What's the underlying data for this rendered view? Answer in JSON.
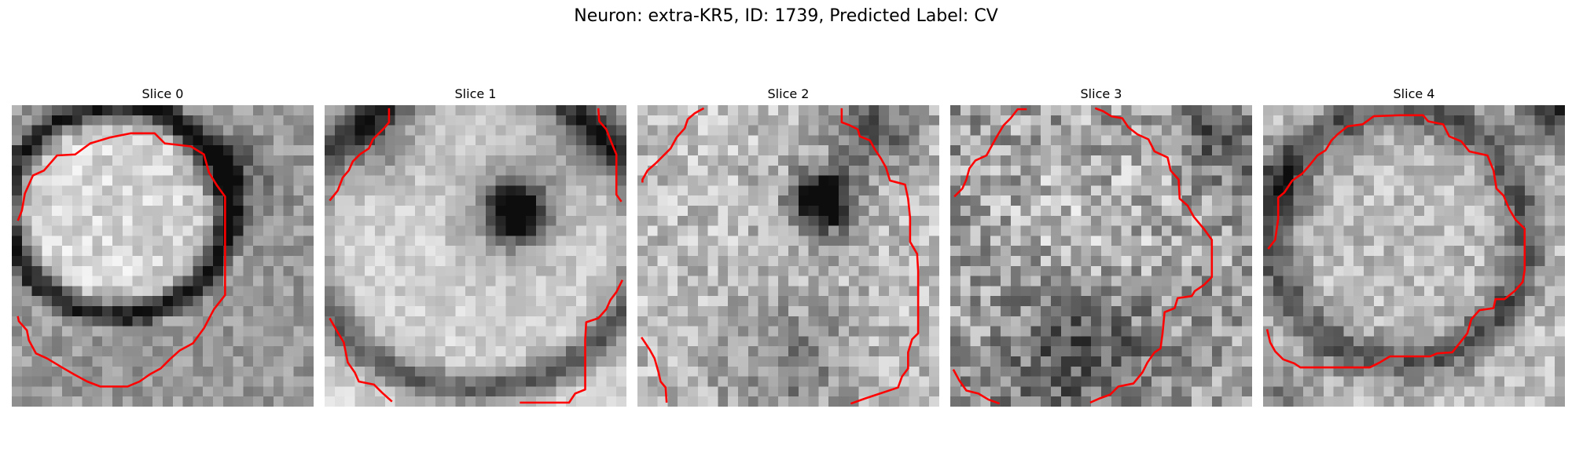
{
  "figure": {
    "title": "Neuron: extra-KR5, ID: 1739, Predicted Label: CV",
    "contour_color": "#ff0000"
  },
  "panels": [
    {
      "title": "Slice 0"
    },
    {
      "title": "Slice 1"
    },
    {
      "title": "Slice 2"
    },
    {
      "title": "Slice 3"
    },
    {
      "title": "Slice 4"
    }
  ]
}
